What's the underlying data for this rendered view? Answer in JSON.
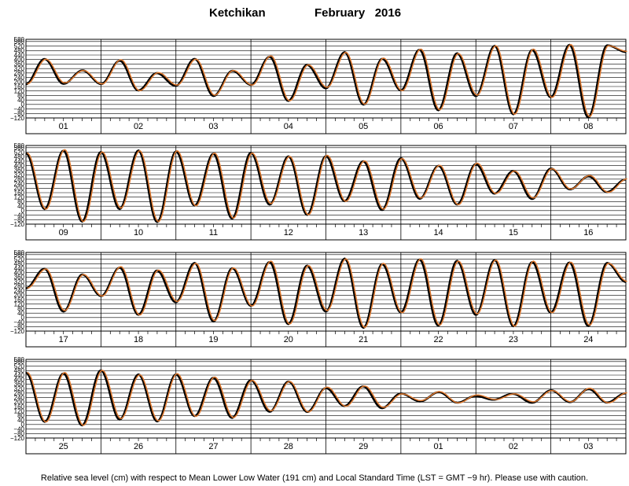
{
  "title": {
    "station": "Ketchikan",
    "month_year": "February   2016"
  },
  "footer": "Relative sea level (cm) with respect to Mean Lower Low Water (191 cm) and Local Standard Time (LST = GMT −9 hr). Please use with caution.",
  "colors": {
    "observed": "#000000",
    "predicted": "#e07a30",
    "grid": "#000000"
  },
  "chart_data": {
    "type": "line",
    "ylim": [
      -120,
      580
    ],
    "yticks": [
      -120,
      -80,
      -40,
      0,
      40,
      80,
      120,
      160,
      200,
      240,
      280,
      320,
      360,
      400,
      440,
      480,
      520,
      560,
      580
    ],
    "ytick_labels": [
      "−120",
      "−80",
      "−40",
      "0",
      "40",
      "80",
      "120",
      "160",
      "200",
      "240",
      "280",
      "320",
      "360",
      "400",
      "440",
      "480",
      "520",
      "560",
      "580"
    ],
    "panels": [
      {
        "day_labels": [
          "01",
          "02",
          "03",
          "04",
          "05",
          "06",
          "07",
          "08"
        ],
        "high_low": [
          [
            0,
            180
          ],
          [
            0.25,
            400
          ],
          [
            0.5,
            190
          ],
          [
            0.75,
            300
          ],
          [
            1,
            180
          ],
          [
            1.25,
            395
          ],
          [
            1.5,
            120
          ],
          [
            1.75,
            280
          ],
          [
            2,
            170
          ],
          [
            2.25,
            400
          ],
          [
            2.5,
            80
          ],
          [
            2.75,
            300
          ],
          [
            3,
            170
          ],
          [
            3.25,
            430
          ],
          [
            3.5,
            30
          ],
          [
            3.75,
            350
          ],
          [
            4,
            150
          ],
          [
            4.25,
            460
          ],
          [
            4.5,
            0
          ],
          [
            4.75,
            410
          ],
          [
            5,
            120
          ],
          [
            5.25,
            490
          ],
          [
            5.5,
            -50
          ],
          [
            5.75,
            450
          ],
          [
            6,
            80
          ],
          [
            6.25,
            520
          ],
          [
            6.5,
            -90
          ],
          [
            6.75,
            490
          ],
          [
            7,
            60
          ],
          [
            7.25,
            530
          ],
          [
            7.5,
            -110
          ],
          [
            7.75,
            520
          ],
          [
            8,
            470
          ]
        ]
      },
      {
        "day_labels": [
          "09",
          "10",
          "11",
          "12",
          "13",
          "14",
          "15",
          "16"
        ],
        "high_low": [
          [
            0,
            510
          ],
          [
            0.25,
            10
          ],
          [
            0.5,
            540
          ],
          [
            0.75,
            -100
          ],
          [
            1,
            520
          ],
          [
            1.25,
            20
          ],
          [
            1.5,
            530
          ],
          [
            1.75,
            -100
          ],
          [
            2,
            530
          ],
          [
            2.25,
            40
          ],
          [
            2.5,
            510
          ],
          [
            2.75,
            -70
          ],
          [
            3,
            510
          ],
          [
            3.25,
            60
          ],
          [
            3.5,
            480
          ],
          [
            3.75,
            -40
          ],
          [
            4,
            490
          ],
          [
            4.25,
            80
          ],
          [
            4.5,
            440
          ],
          [
            4.75,
            10
          ],
          [
            5,
            460
          ],
          [
            5.25,
            110
          ],
          [
            5.5,
            400
          ],
          [
            5.75,
            50
          ],
          [
            6,
            420
          ],
          [
            6.25,
            150
          ],
          [
            6.5,
            350
          ],
          [
            6.75,
            110
          ],
          [
            7,
            370
          ],
          [
            7.25,
            190
          ],
          [
            7.5,
            310
          ],
          [
            7.75,
            160
          ],
          [
            8,
            280
          ]
        ]
      },
      {
        "day_labels": [
          "17",
          "18",
          "19",
          "20",
          "21",
          "22",
          "23",
          "24"
        ],
        "high_low": [
          [
            0,
            260
          ],
          [
            0.25,
            430
          ],
          [
            0.5,
            60
          ],
          [
            0.75,
            380
          ],
          [
            1,
            190
          ],
          [
            1.25,
            450
          ],
          [
            1.5,
            20
          ],
          [
            1.75,
            420
          ],
          [
            2,
            140
          ],
          [
            2.25,
            480
          ],
          [
            2.5,
            -30
          ],
          [
            2.75,
            440
          ],
          [
            3,
            100
          ],
          [
            3.25,
            500
          ],
          [
            3.5,
            -60
          ],
          [
            3.75,
            460
          ],
          [
            4,
            60
          ],
          [
            4.25,
            520
          ],
          [
            4.5,
            -90
          ],
          [
            4.75,
            480
          ],
          [
            5,
            40
          ],
          [
            5.25,
            520
          ],
          [
            5.5,
            -70
          ],
          [
            5.75,
            500
          ],
          [
            6,
            30
          ],
          [
            6.25,
            510
          ],
          [
            6.5,
            -80
          ],
          [
            6.75,
            500
          ],
          [
            7,
            40
          ],
          [
            7.25,
            490
          ],
          [
            7.5,
            -70
          ],
          [
            7.75,
            480
          ],
          [
            8,
            320
          ]
        ]
      },
      {
        "day_labels": [
          "25",
          "26",
          "27",
          "28",
          "29",
          "01",
          "02",
          "03"
        ],
        "high_low": [
          [
            0,
            460
          ],
          [
            0.25,
            20
          ],
          [
            0.5,
            460
          ],
          [
            0.75,
            -10
          ],
          [
            1,
            480
          ],
          [
            1.25,
            50
          ],
          [
            1.5,
            440
          ],
          [
            1.75,
            30
          ],
          [
            2,
            450
          ],
          [
            2.25,
            70
          ],
          [
            2.5,
            420
          ],
          [
            2.75,
            60
          ],
          [
            3,
            390
          ],
          [
            3.25,
            120
          ],
          [
            3.5,
            380
          ],
          [
            3.75,
            110
          ],
          [
            4,
            330
          ],
          [
            4.25,
            160
          ],
          [
            4.5,
            340
          ],
          [
            4.75,
            150
          ],
          [
            5,
            270
          ],
          [
            5.25,
            210
          ],
          [
            5.5,
            290
          ],
          [
            5.75,
            190
          ],
          [
            6,
            260
          ],
          [
            6.25,
            220
          ],
          [
            6.5,
            270
          ],
          [
            6.75,
            200
          ],
          [
            7,
            300
          ],
          [
            7.25,
            200
          ],
          [
            7.5,
            320
          ],
          [
            7.75,
            190
          ],
          [
            8,
            280
          ]
        ]
      }
    ]
  }
}
